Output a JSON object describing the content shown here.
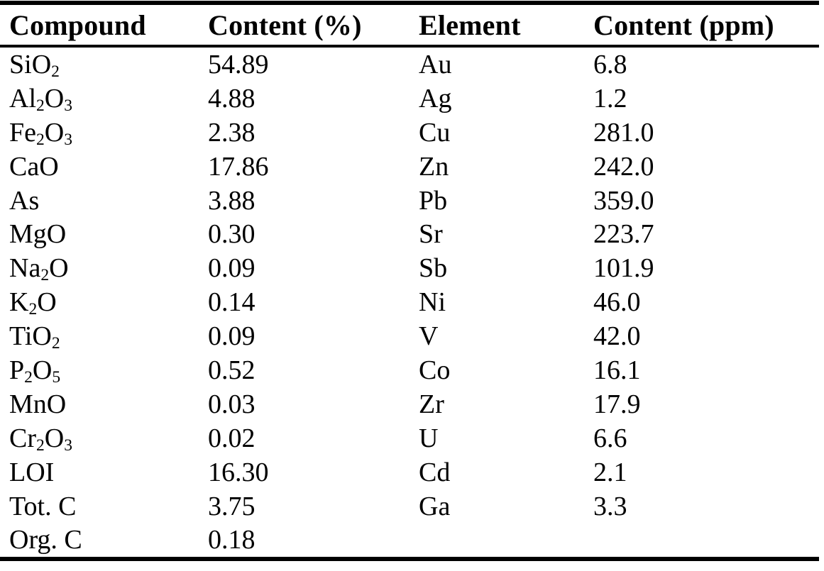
{
  "table": {
    "columns": [
      "Compound",
      "Content (%)",
      "Element",
      "Content (ppm)"
    ],
    "rows": [
      {
        "compound": "SiO_2",
        "content_pct": "54.89",
        "element": "Au",
        "content_ppm": "6.8"
      },
      {
        "compound": "Al_2O_3",
        "content_pct": "4.88",
        "element": "Ag",
        "content_ppm": "1.2"
      },
      {
        "compound": "Fe_2O_3",
        "content_pct": "2.38",
        "element": "Cu",
        "content_ppm": "281.0"
      },
      {
        "compound": "CaO",
        "content_pct": "17.86",
        "element": "Zn",
        "content_ppm": "242.0"
      },
      {
        "compound": "As",
        "content_pct": "3.88",
        "element": "Pb",
        "content_ppm": "359.0"
      },
      {
        "compound": "MgO",
        "content_pct": "0.30",
        "element": "Sr",
        "content_ppm": "223.7"
      },
      {
        "compound": "Na_2O",
        "content_pct": "0.09",
        "element": "Sb",
        "content_ppm": "101.9"
      },
      {
        "compound": "K_2O",
        "content_pct": "0.14",
        "element": "Ni",
        "content_ppm": "46.0"
      },
      {
        "compound": "TiO_2",
        "content_pct": "0.09",
        "element": "V",
        "content_ppm": "42.0"
      },
      {
        "compound": "P_2O_5",
        "content_pct": "0.52",
        "element": "Co",
        "content_ppm": "16.1"
      },
      {
        "compound": "MnO",
        "content_pct": "0.03",
        "element": "Zr",
        "content_ppm": "17.9"
      },
      {
        "compound": "Cr_2O_3",
        "content_pct": "0.02",
        "element": "U",
        "content_ppm": "6.6"
      },
      {
        "compound": "LOI",
        "content_pct": "16.30",
        "element": "Cd",
        "content_ppm": "2.1"
      },
      {
        "compound": "Tot. C",
        "content_pct": "3.75",
        "element": "Ga",
        "content_ppm": "3.3"
      },
      {
        "compound": "Org. C",
        "content_pct": "0.18",
        "element": "",
        "content_ppm": ""
      }
    ],
    "text_color": "#000000",
    "rule_color": "#000000"
  }
}
